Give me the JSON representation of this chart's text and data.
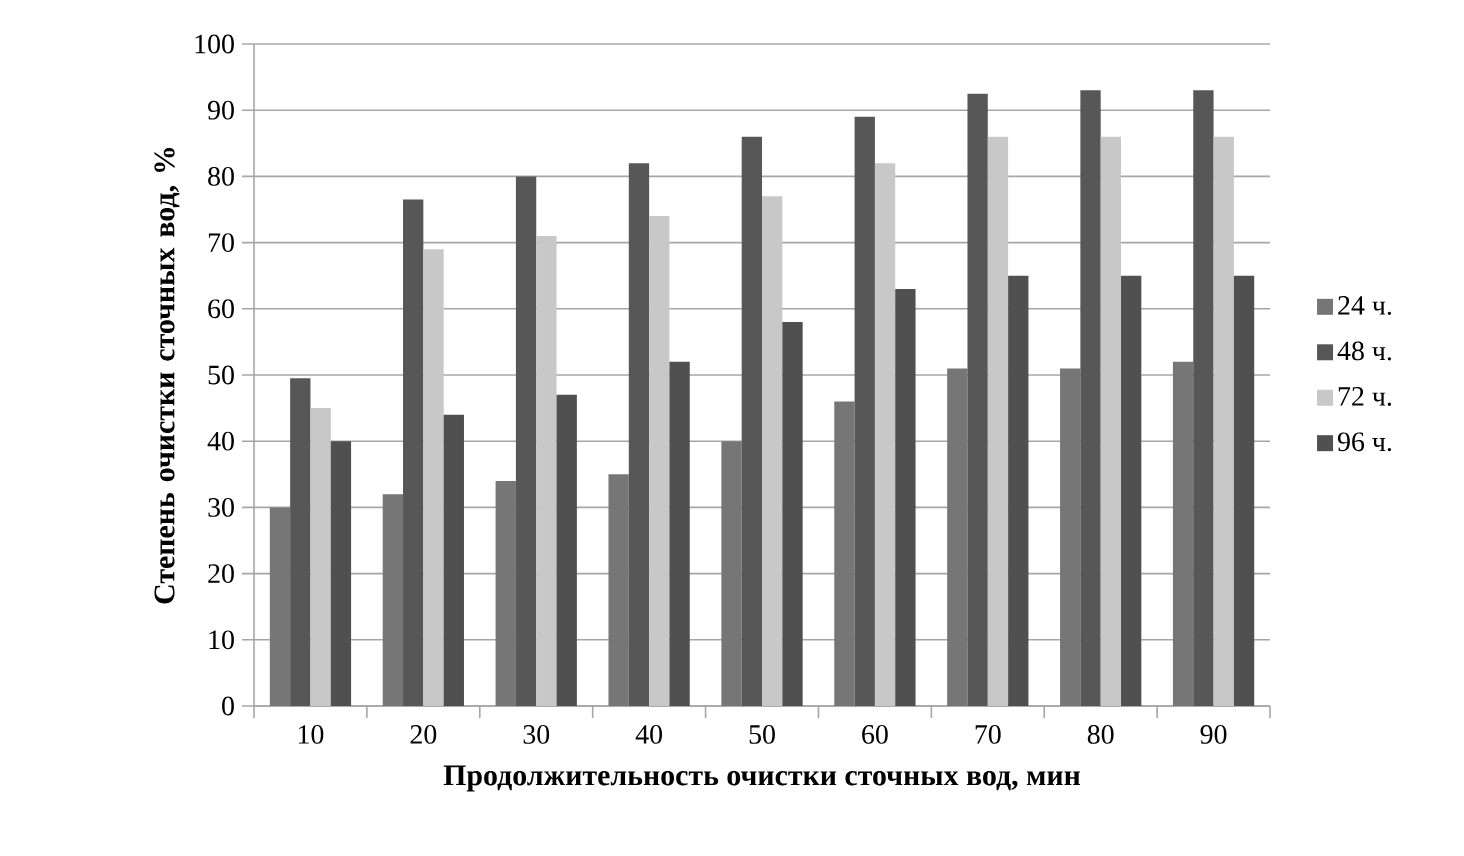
{
  "chart_data": {
    "type": "bar",
    "xlabel": "Продолжительность  очистки сточных вод, мин",
    "ylabel": "Степень очистки сточных вод, %",
    "categories": [
      "10",
      "20",
      "30",
      "40",
      "50",
      "60",
      "70",
      "80",
      "90"
    ],
    "series": [
      {
        "name": "24 ч.",
        "color": "#767676",
        "values": [
          30,
          32,
          34,
          35,
          40,
          46,
          51,
          51,
          52
        ]
      },
      {
        "name": "48 ч.",
        "color": "#575757",
        "values": [
          49.5,
          76.5,
          80,
          82,
          86,
          89,
          92.5,
          93,
          93
        ]
      },
      {
        "name": "72 ч.",
        "color": "#c8c8c8",
        "values": [
          45,
          69,
          71,
          74,
          77,
          82,
          86,
          86,
          86
        ]
      },
      {
        "name": "96 ч.",
        "color": "#505050",
        "values": [
          40,
          44,
          47,
          52,
          58,
          63,
          65,
          65,
          65
        ]
      }
    ],
    "ylim": [
      0,
      100
    ],
    "yticks": [
      0,
      10,
      20,
      30,
      40,
      50,
      60,
      70,
      80,
      90,
      100
    ],
    "grid": "y",
    "legend": "right"
  }
}
